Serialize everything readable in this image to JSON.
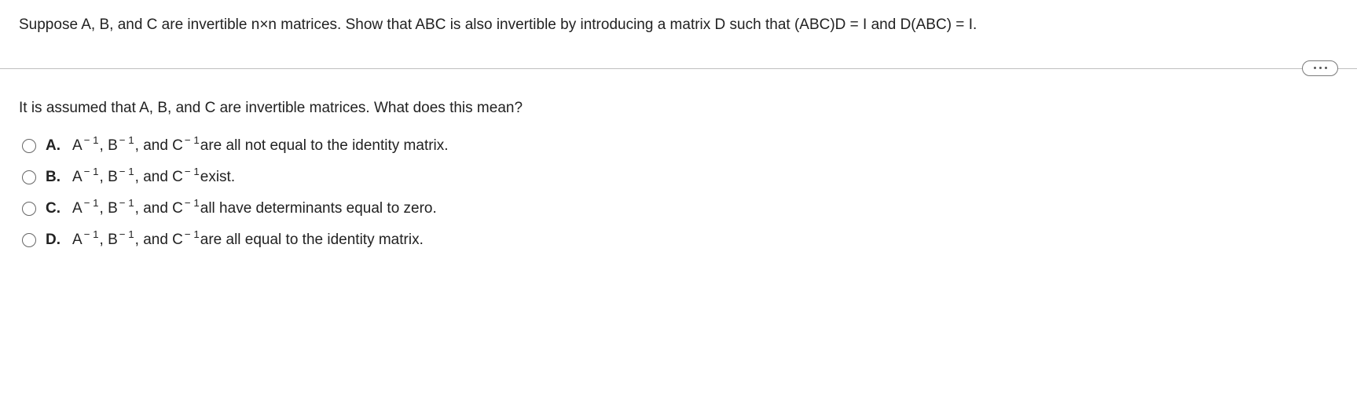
{
  "problem": {
    "prefix": "Suppose A, B, and C are invertible n",
    "times": "×",
    "mid": "n matrices. Show that ABC is also invertible by introducing a matrix D such that (ABC)D",
    "eq1": " = ",
    "i1": "I",
    "and": " and D(ABC)",
    "eq2": " = ",
    "i2": "I",
    "period": "."
  },
  "question": "It is assumed that A, B, and C are invertible matrices. What does this mean?",
  "inv_prefix": {
    "A": "A",
    "B": ", B",
    "C": ", and C",
    "exp": "− 1"
  },
  "options": [
    {
      "letter": "A.",
      "tail": " are all not equal to the identity matrix."
    },
    {
      "letter": "B.",
      "tail": " exist."
    },
    {
      "letter": "C.",
      "tail": " all have determinants equal to zero."
    },
    {
      "letter": "D.",
      "tail": " are all equal to the identity matrix."
    }
  ]
}
